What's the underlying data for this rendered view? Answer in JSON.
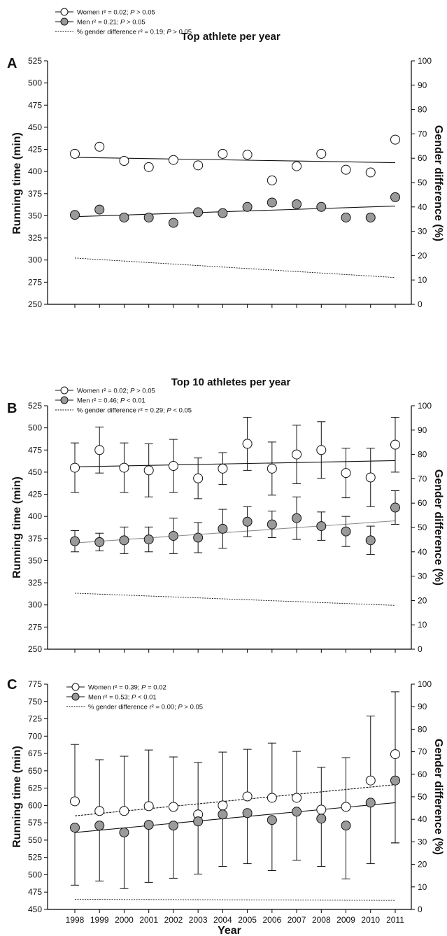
{
  "colors": {
    "axis": "#000000",
    "women_fill": "#ffffff",
    "men_fill": "#9a9a9a",
    "marker_stroke": "#111111",
    "men_line_B": "#8c8c8c"
  },
  "chart_data": [
    {
      "id": "A",
      "type": "scatter",
      "panel_letter": "A",
      "title": "Top athlete per year",
      "xlabel": "",
      "ylabel": "Running time (min)",
      "y2label": "Gender difference (%)",
      "x": [
        1998,
        1999,
        2000,
        2001,
        2002,
        2003,
        2004,
        2005,
        2006,
        2007,
        2008,
        2009,
        2010,
        2011
      ],
      "ylim": [
        250,
        525
      ],
      "yticks": [
        250,
        275,
        300,
        325,
        350,
        375,
        400,
        425,
        450,
        475,
        500,
        525
      ],
      "y2lim": [
        0,
        100
      ],
      "y2ticks": [
        0,
        10,
        20,
        30,
        40,
        50,
        60,
        70,
        80,
        90,
        100
      ],
      "series": [
        {
          "name": "Women",
          "marker": "open-circle",
          "values": [
            420,
            428,
            412,
            405,
            413,
            407,
            420,
            419,
            390,
            406,
            420,
            402,
            399,
            436
          ],
          "trend": [
            416,
            410
          ]
        },
        {
          "name": "Men",
          "marker": "filled-circle",
          "values": [
            351,
            357,
            348,
            348,
            342,
            354,
            353,
            360,
            365,
            363,
            360,
            348,
            348,
            371
          ],
          "trend": [
            349,
            361
          ]
        },
        {
          "name": "% gender difference",
          "marker": "none",
          "axis": "right",
          "trend": [
            19,
            11
          ]
        }
      ],
      "legend": [
        {
          "label": "Women r² = 0.02; ",
          "stat": "P",
          "rest": " > 0.05"
        },
        {
          "label": "Men r² = 0.21; ",
          "stat": "P",
          "rest": " > 0.05"
        },
        {
          "label": "% gender difference  r² = 0.19; ",
          "stat": "P",
          "rest": " > 0.05"
        }
      ],
      "legend_position": "top-left, above plot"
    },
    {
      "id": "B",
      "type": "scatter",
      "panel_letter": "B",
      "title": "Top 10 athletes per year",
      "xlabel": "",
      "ylabel": "Running time (min)",
      "y2label": "Gender difference (%)",
      "x": [
        1998,
        1999,
        2000,
        2001,
        2002,
        2003,
        2004,
        2005,
        2006,
        2007,
        2008,
        2009,
        2010,
        2011
      ],
      "ylim": [
        250,
        525
      ],
      "yticks": [
        250,
        275,
        300,
        325,
        350,
        375,
        400,
        425,
        450,
        475,
        500,
        525
      ],
      "y2lim": [
        0,
        100
      ],
      "y2ticks": [
        0,
        10,
        20,
        30,
        40,
        50,
        60,
        70,
        80,
        90,
        100
      ],
      "series": [
        {
          "name": "Women",
          "marker": "open-circle",
          "values": [
            455,
            475,
            455,
            452,
            457,
            443,
            454,
            482,
            454,
            470,
            475,
            449,
            444,
            481
          ],
          "err_hi": [
            483,
            501,
            483,
            482,
            487,
            466,
            472,
            512,
            484,
            503,
            507,
            477,
            477,
            512
          ],
          "err_lo": [
            427,
            449,
            427,
            422,
            427,
            420,
            436,
            452,
            424,
            437,
            443,
            421,
            411,
            450
          ],
          "trend": [
            456,
            463
          ]
        },
        {
          "name": "Men",
          "marker": "filled-circle",
          "values": [
            372,
            371,
            373,
            374,
            378,
            376,
            386,
            394,
            391,
            398,
            389,
            383,
            373,
            410
          ],
          "err_hi": [
            384,
            381,
            388,
            388,
            398,
            393,
            408,
            411,
            406,
            422,
            405,
            400,
            389,
            429
          ],
          "err_lo": [
            360,
            361,
            358,
            360,
            358,
            359,
            364,
            377,
            376,
            374,
            373,
            366,
            357,
            391
          ],
          "trend": [
            370,
            395
          ]
        },
        {
          "name": "% gender difference",
          "marker": "none",
          "axis": "right",
          "trend": [
            23,
            18
          ]
        }
      ],
      "legend": [
        {
          "label": "Women r² = 0.02; ",
          "stat": "P",
          "rest": " > 0.05"
        },
        {
          "label": "Men r² = 0.46; ",
          "stat": "P",
          "rest": " < 0.01"
        },
        {
          "label": "% gender difference r² = 0.29; ",
          "stat": "P",
          "rest": " < 0.05"
        }
      ],
      "legend_position": "top-left, above plot"
    },
    {
      "id": "C",
      "type": "scatter",
      "panel_letter": "C",
      "title": "",
      "xlabel": "Year",
      "ylabel": "Running time (min)",
      "y2label": "Gender difference (%)",
      "x": [
        1998,
        1999,
        2000,
        2001,
        2002,
        2003,
        2004,
        2005,
        2006,
        2007,
        2008,
        2009,
        2010,
        2011
      ],
      "ylim": [
        450,
        775
      ],
      "yticks": [
        450,
        475,
        500,
        525,
        550,
        575,
        600,
        625,
        650,
        675,
        700,
        725,
        750,
        775
      ],
      "y2lim": [
        0,
        100
      ],
      "y2ticks": [
        0,
        10,
        20,
        30,
        40,
        50,
        60,
        70,
        80,
        90,
        100
      ],
      "series": [
        {
          "name": "Women",
          "marker": "open-circle",
          "values": [
            606,
            592,
            592,
            599,
            598,
            587,
            600,
            613,
            611,
            611,
            594,
            598,
            636,
            674
          ],
          "err_hi": [
            688,
            666,
            671,
            680,
            670,
            662,
            677,
            681,
            690,
            678,
            655,
            669,
            729,
            764
          ],
          "err_lo": [
            606,
            592,
            592,
            599,
            598,
            587,
            600,
            613,
            611,
            611,
            594,
            598,
            636,
            546
          ],
          "trend": [
            585,
            630
          ]
        },
        {
          "name": "Men",
          "marker": "filled-circle",
          "values": [
            568,
            571,
            561,
            572,
            571,
            577,
            587,
            589,
            579,
            591,
            581,
            571,
            604,
            636
          ],
          "err_hi": [
            568,
            571,
            561,
            572,
            571,
            577,
            587,
            589,
            579,
            591,
            581,
            571,
            604,
            636
          ],
          "err_lo": [
            485,
            491,
            480,
            489,
            495,
            501,
            512,
            516,
            506,
            521,
            512,
            494,
            516,
            546
          ],
          "trend": [
            561,
            604
          ]
        },
        {
          "name": "% gender difference",
          "marker": "none",
          "axis": "right",
          "trend": [
            4.5,
            4.0
          ]
        }
      ],
      "legend": [
        {
          "label": "Women r² = 0.39; ",
          "stat": "P",
          "rest": " = 0.02"
        },
        {
          "label": "Men r² = 0.53; ",
          "stat": "P",
          "rest": " < 0.01"
        },
        {
          "label": "% gender difference r² = 0.00; ",
          "stat": "P",
          "rest": " > 0.05"
        }
      ],
      "legend_position": "top-left, inside plot"
    }
  ]
}
